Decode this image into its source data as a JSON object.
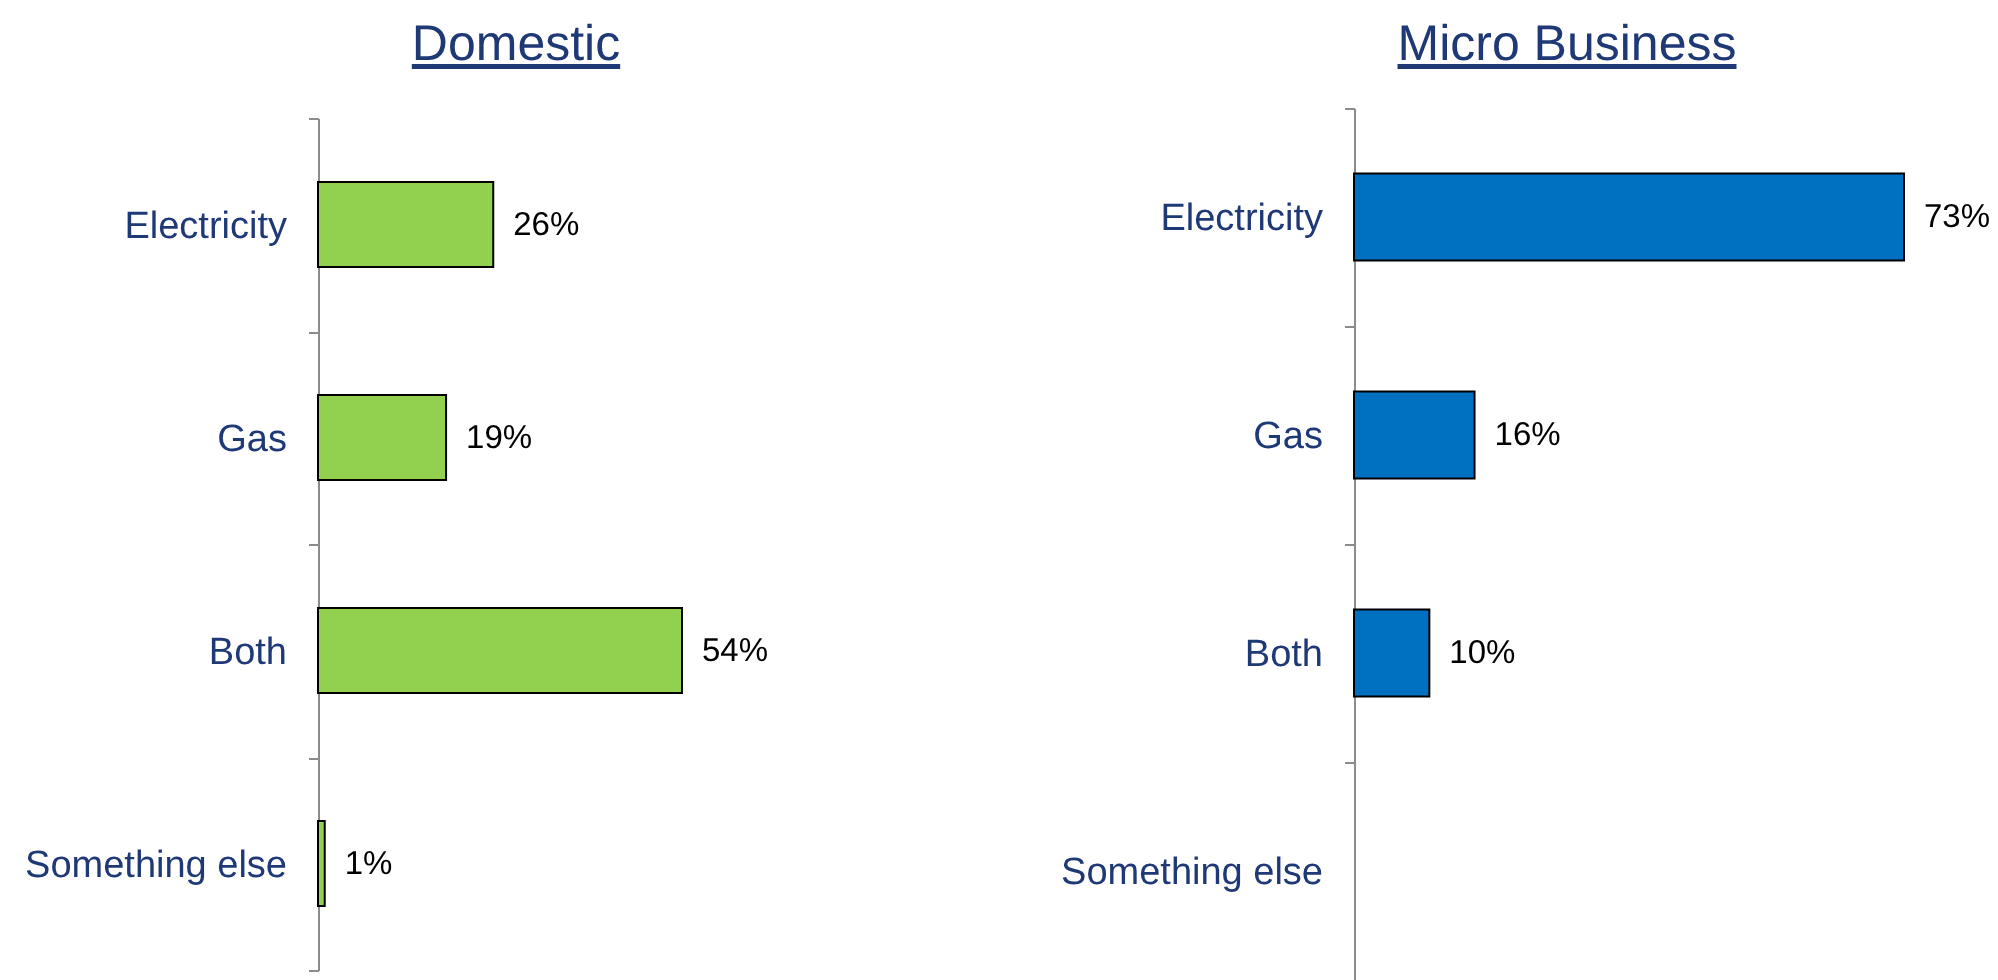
{
  "chart_data": [
    {
      "type": "bar",
      "orientation": "horizontal",
      "title": "Domestic",
      "categories": [
        "Electricity",
        "Gas",
        "Both",
        "Something else"
      ],
      "values": [
        26,
        19,
        54,
        1
      ],
      "color": "#92d050",
      "value_labels": [
        "26%",
        "19%",
        "54%",
        "1%"
      ],
      "tick_labels": "y"
    },
    {
      "type": "bar",
      "orientation": "horizontal",
      "title": "Micro Business",
      "categories": [
        "Electricity",
        "Gas",
        "Both",
        "Something else"
      ],
      "values": [
        73,
        16,
        10,
        null
      ],
      "color": "#0070c0",
      "value_labels": [
        "73%",
        "16%",
        "10%",
        null
      ],
      "tick_labels": "y"
    }
  ]
}
